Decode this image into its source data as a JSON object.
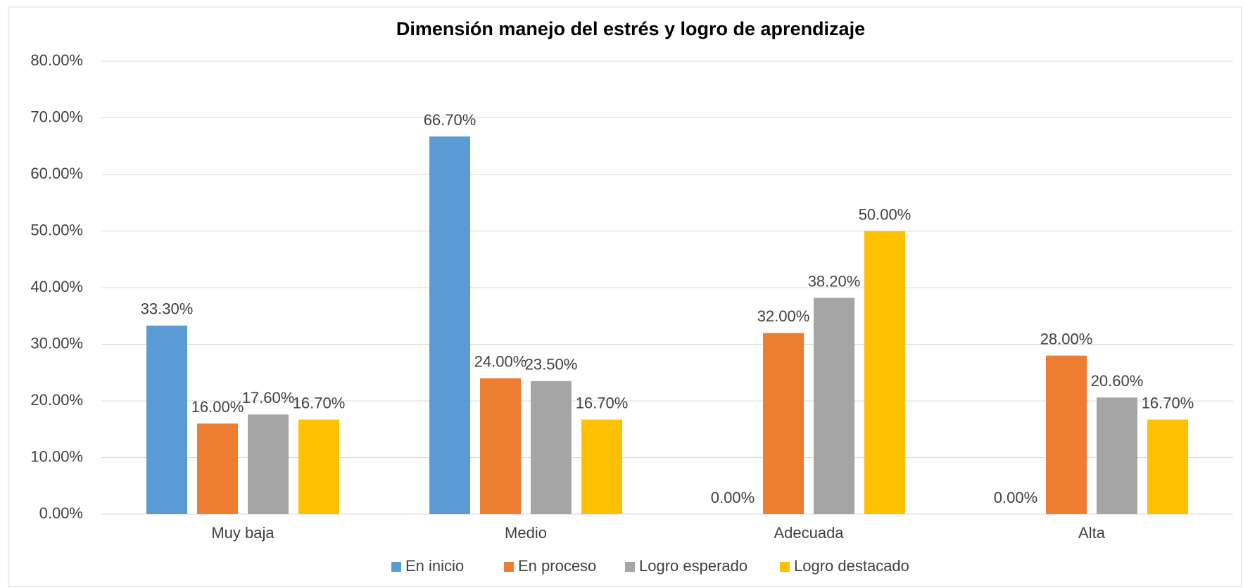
{
  "chart_data": {
    "type": "bar",
    "title": "Dimensión manejo del estrés y logro de aprendizaje",
    "categories": [
      "Muy baja",
      "Medio",
      "Adecuada",
      "Alta"
    ],
    "series": [
      {
        "name": "En inicio",
        "color": "#5b9bd5",
        "values": [
          33.3,
          66.7,
          0,
          0
        ],
        "value_labels": [
          "33.30%",
          "66.70%",
          "0.00%",
          "0.00%"
        ]
      },
      {
        "name": "En proceso",
        "color": "#ed7d31",
        "values": [
          16,
          24,
          32,
          28
        ],
        "value_labels": [
          "16.00%",
          "24.00%",
          "32.00%",
          "28.00%"
        ]
      },
      {
        "name": "Logro esperado",
        "color": "#a5a5a5",
        "values": [
          17.6,
          23.5,
          38.2,
          20.6
        ],
        "value_labels": [
          "17.60%",
          "23.50%",
          "38.20%",
          "20.60%"
        ]
      },
      {
        "name": "Logro destacado",
        "color": "#ffc000",
        "values": [
          16.7,
          16.7,
          50,
          16.7
        ],
        "value_labels": [
          "16.70%",
          "16.70%",
          "50.00%",
          "16.70%"
        ]
      }
    ],
    "ylim": [
      0,
      80
    ],
    "yticks": [
      {
        "value": 0,
        "label": "0.00%"
      },
      {
        "value": 10,
        "label": "10.00%"
      },
      {
        "value": 20,
        "label": "20.00%"
      },
      {
        "value": 30,
        "label": "30.00%"
      },
      {
        "value": 40,
        "label": "40.00%"
      },
      {
        "value": 50,
        "label": "50.00%"
      },
      {
        "value": 60,
        "label": "60.00%"
      },
      {
        "value": 70,
        "label": "70.00%"
      },
      {
        "value": 80,
        "label": "80.00%"
      }
    ],
    "grid": true,
    "legend": "bottom"
  }
}
